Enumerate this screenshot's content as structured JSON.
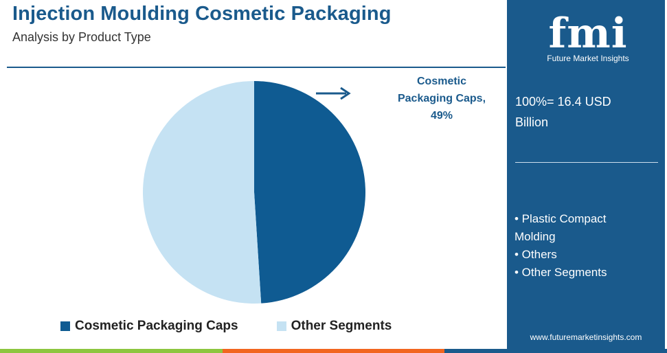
{
  "header": {
    "title": "Injection Moulding Cosmetic Packaging",
    "subtitle": "Analysis by Product Type"
  },
  "callout": {
    "line1": "Cosmetic",
    "line2": "Packaging Caps,",
    "line3": "49%"
  },
  "panel": {
    "logo_text": "fmi",
    "logo_sub": "Future Market Insights",
    "total_line1": "100%= 16.4 USD",
    "total_line2": "Billion",
    "segments": [
      "• Plastic Compact",
      "Molding",
      "• Others",
      "• Other Segments"
    ],
    "website": "www.futuremarketinsights.com"
  },
  "colors": {
    "brand": "#1a5a8c",
    "caps": "#0f5b92",
    "other": "#c5e2f3",
    "bar": [
      "#8dc63f",
      "#f2651f",
      "#1a5a8c"
    ]
  },
  "chart_data": {
    "type": "pie",
    "slices": [
      {
        "name": "Cosmetic Packaging Caps",
        "value": 49,
        "color": "#0f5b92"
      },
      {
        "name": "Other Segments",
        "value": 51,
        "color": "#c5e2f3"
      }
    ],
    "legend": "bottom"
  }
}
